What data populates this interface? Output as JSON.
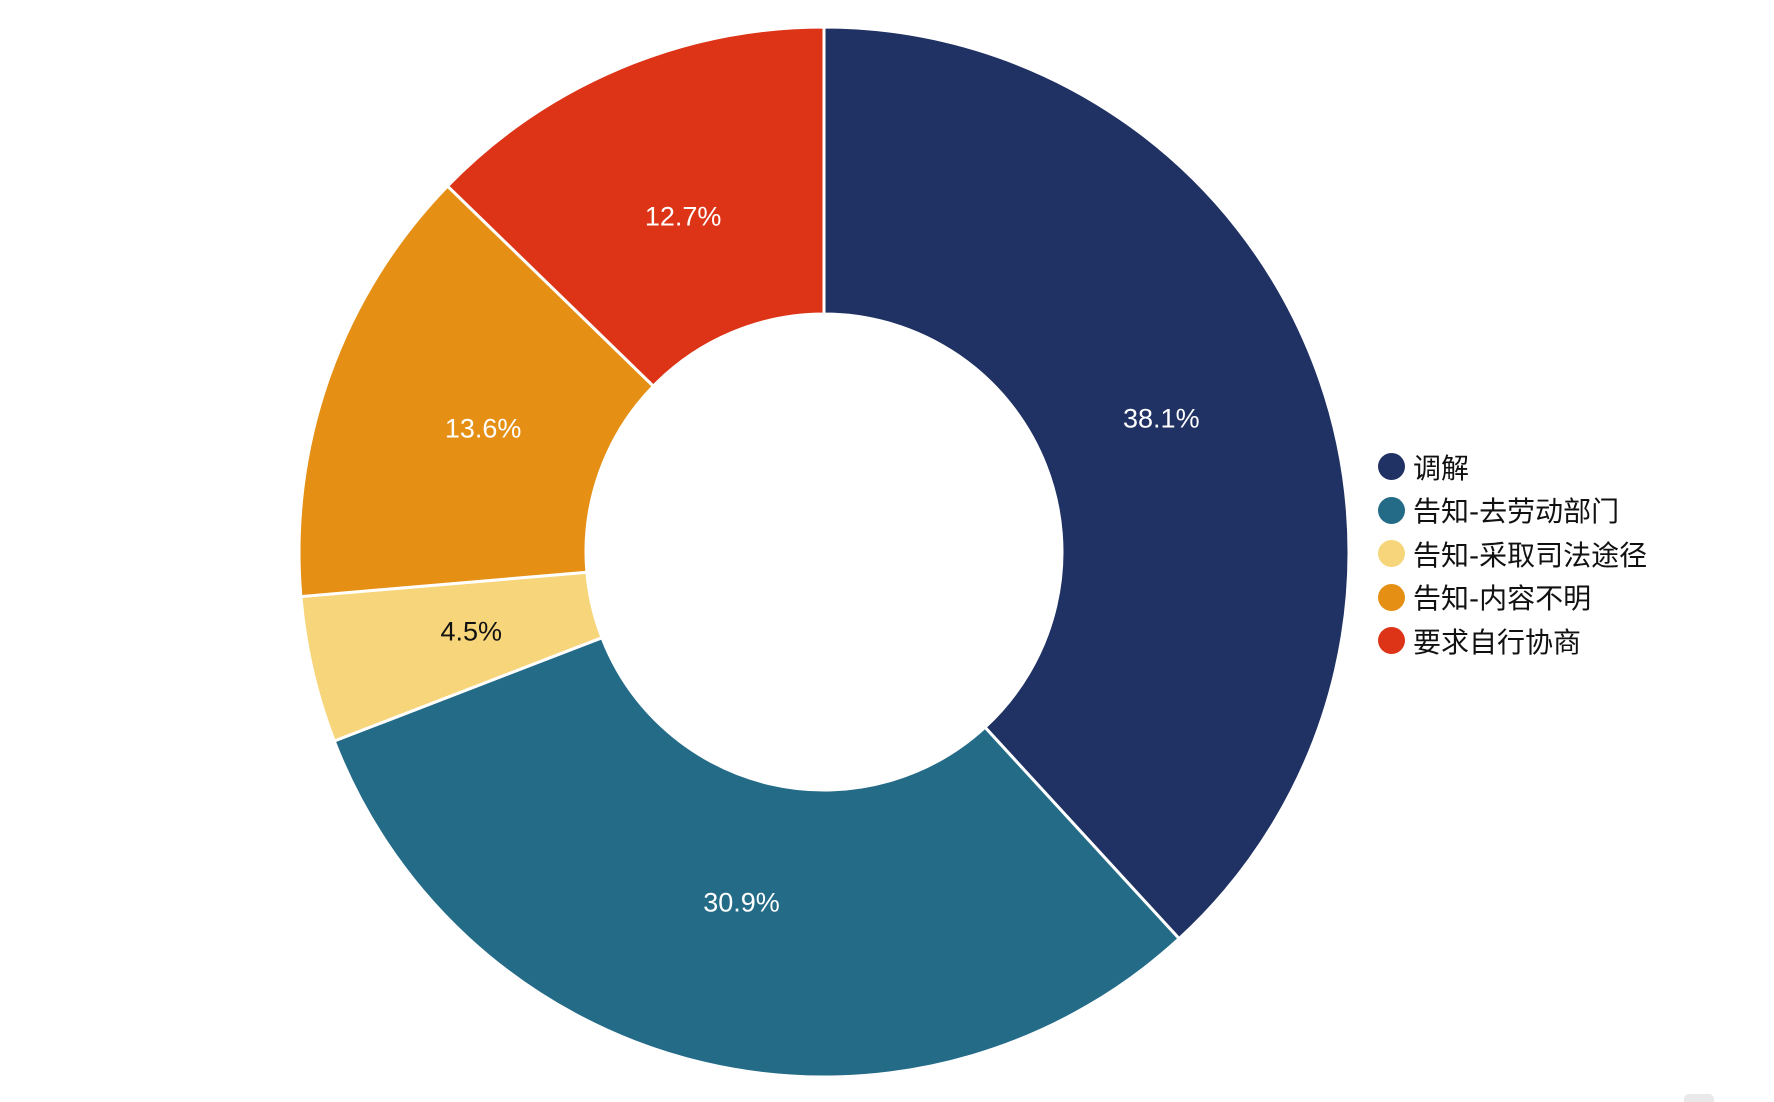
{
  "chart_data": {
    "type": "pie",
    "donut": true,
    "start_angle_deg": 0,
    "direction": "clockwise",
    "slice_border_color": "#ffffff",
    "legend_position": "right",
    "categories": [
      "调解",
      "告知-去劳动部门",
      "告知-采取司法途径",
      "告知-内容不明",
      "要求自行协商"
    ],
    "values": [
      38.1,
      30.9,
      4.5,
      13.6,
      12.7
    ],
    "labels": [
      "38.1%",
      "30.9%",
      "4.5%",
      "13.6%",
      "12.7%"
    ],
    "colors": [
      "#203163",
      "#236b87",
      "#f7d57a",
      "#e58f14",
      "#dd3316"
    ],
    "label_colors": [
      "#ffffff",
      "#ffffff",
      "#111111",
      "#ffffff",
      "#ffffff"
    ]
  }
}
